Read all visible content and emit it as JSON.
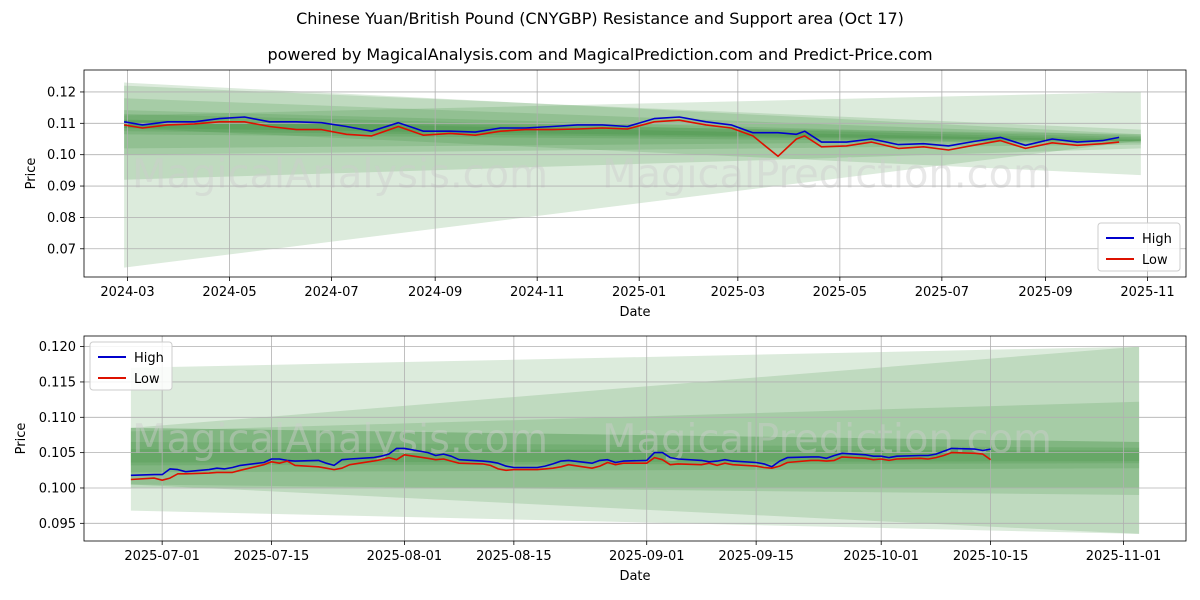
{
  "title": "Chinese Yuan/British Pound (CNYGBP) Resistance and Support area (Oct 17)",
  "subtitle": "powered by MagicalAnalysis.com and MagicalPrediction.com and Predict-Price.com",
  "watermark_left": "MagicalAnalysis.com",
  "watermark_right": "MagicalPrediction.com",
  "colors": {
    "high": "#0000cc",
    "low": "#dd1100",
    "band": "#2e8b2e",
    "grid": "#b0b0b0"
  },
  "chart_data": [
    {
      "type": "line",
      "xlabel": "Date",
      "ylabel": "Price",
      "ylim": [
        0.061,
        0.127
      ],
      "yticks": [
        "0.07",
        "0.08",
        "0.09",
        "0.10",
        "0.11",
        "0.12"
      ],
      "xticks": [
        "2024-03",
        "2024-05",
        "2024-07",
        "2024-09",
        "2024-11",
        "2025-01",
        "2025-03",
        "2025-05",
        "2025-07",
        "2025-09",
        "2025-11"
      ],
      "grid": true,
      "legend_position": "lower-right",
      "series": [
        {
          "name": "High",
          "color": "#0000cc",
          "x": [
            "2024-02-28",
            "2024-03-10",
            "2024-03-25",
            "2024-04-10",
            "2024-04-25",
            "2024-05-10",
            "2024-05-25",
            "2024-06-10",
            "2024-06-25",
            "2024-07-10",
            "2024-07-25",
            "2024-08-10",
            "2024-08-25",
            "2024-09-10",
            "2024-09-25",
            "2024-10-10",
            "2024-10-25",
            "2024-11-10",
            "2024-11-25",
            "2024-12-10",
            "2024-12-25",
            "2025-01-10",
            "2025-01-25",
            "2025-02-10",
            "2025-02-25",
            "2025-03-10",
            "2025-03-25",
            "2025-04-05",
            "2025-04-10",
            "2025-04-20",
            "2025-05-05",
            "2025-05-20",
            "2025-06-05",
            "2025-06-20",
            "2025-07-05",
            "2025-07-20",
            "2025-08-05",
            "2025-08-20",
            "2025-09-05",
            "2025-09-20",
            "2025-10-05",
            "2025-10-15"
          ],
          "values": [
            0.1105,
            0.1095,
            0.1105,
            0.1105,
            0.1115,
            0.112,
            0.1105,
            0.1105,
            0.1102,
            0.109,
            0.1075,
            0.1102,
            0.1075,
            0.1075,
            0.1072,
            0.1085,
            0.1085,
            0.109,
            0.1095,
            0.1095,
            0.109,
            0.1115,
            0.112,
            0.1105,
            0.1095,
            0.107,
            0.107,
            0.1065,
            0.1075,
            0.104,
            0.104,
            0.105,
            0.1032,
            0.1035,
            0.1028,
            0.1042,
            0.1055,
            0.103,
            0.105,
            0.104,
            0.1045,
            0.1055
          ]
        },
        {
          "name": "Low",
          "color": "#dd1100",
          "x": [
            "2024-02-28",
            "2024-03-10",
            "2024-03-25",
            "2024-04-10",
            "2024-04-25",
            "2024-05-10",
            "2024-05-25",
            "2024-06-10",
            "2024-06-25",
            "2024-07-10",
            "2024-07-25",
            "2024-08-10",
            "2024-08-25",
            "2024-09-10",
            "2024-09-25",
            "2024-10-10",
            "2024-10-25",
            "2024-11-10",
            "2024-11-25",
            "2024-12-10",
            "2024-12-25",
            "2025-01-10",
            "2025-01-25",
            "2025-02-10",
            "2025-02-25",
            "2025-03-10",
            "2025-03-25",
            "2025-04-05",
            "2025-04-10",
            "2025-04-20",
            "2025-05-05",
            "2025-05-20",
            "2025-06-05",
            "2025-06-20",
            "2025-07-05",
            "2025-07-20",
            "2025-08-05",
            "2025-08-20",
            "2025-09-05",
            "2025-09-20",
            "2025-10-05",
            "2025-10-15"
          ],
          "values": [
            0.1095,
            0.1085,
            0.1095,
            0.1098,
            0.1105,
            0.1105,
            0.109,
            0.108,
            0.108,
            0.1065,
            0.106,
            0.109,
            0.1062,
            0.1068,
            0.1062,
            0.1075,
            0.108,
            0.108,
            0.1082,
            0.1085,
            0.1082,
            0.1105,
            0.111,
            0.1095,
            0.1085,
            0.106,
            0.0995,
            0.105,
            0.106,
            0.1025,
            0.1028,
            0.104,
            0.102,
            0.1025,
            0.1015,
            0.103,
            0.1045,
            0.102,
            0.1038,
            0.103,
            0.1035,
            0.104
          ]
        }
      ],
      "bands": [
        {
          "x0": "2024-02-28",
          "x1": "2025-10-28",
          "upper0": 0.123,
          "upper1": 0.1065,
          "lower0": 0.064,
          "lower1": 0.1045
        },
        {
          "x0": "2024-02-28",
          "x1": "2025-10-28",
          "upper0": 0.122,
          "upper1": 0.108,
          "lower0": 0.092,
          "lower1": 0.102
        },
        {
          "x0": "2024-02-28",
          "x1": "2025-10-28",
          "upper0": 0.118,
          "upper1": 0.106,
          "lower0": 0.1,
          "lower1": 0.1032
        },
        {
          "x0": "2024-02-28",
          "x1": "2025-10-28",
          "upper0": 0.1142,
          "upper1": 0.1055,
          "lower0": 0.1065,
          "lower1": 0.1038
        },
        {
          "x0": "2024-02-28",
          "x1": "2025-10-28",
          "upper0": 0.113,
          "upper1": 0.105,
          "lower0": 0.1075,
          "lower1": 0.1042
        },
        {
          "x0": "2024-02-28",
          "x1": "2025-10-28",
          "upper0": 0.1112,
          "upper1": 0.1046,
          "lower0": 0.1085,
          "lower1": 0.1043
        },
        {
          "x0": "2024-02-28",
          "x1": "2025-10-28",
          "upper0": 0.111,
          "upper1": 0.1065,
          "lower0": 0.102,
          "lower1": 0.1045
        },
        {
          "x0": "2024-02-28",
          "x1": "2025-10-28",
          "upper0": 0.1125,
          "upper1": 0.12,
          "lower0": 0.1085,
          "lower1": 0.0935
        }
      ]
    },
    {
      "type": "line",
      "xlabel": "Date",
      "ylabel": "Price",
      "ylim": [
        0.0925,
        0.1215
      ],
      "yticks": [
        "0.095",
        "0.100",
        "0.105",
        "0.110",
        "0.115",
        "0.120"
      ],
      "xticks": [
        "2025-07-01",
        "2025-07-15",
        "2025-08-01",
        "2025-08-15",
        "2025-09-01",
        "2025-09-15",
        "2025-10-01",
        "2025-10-15",
        "2025-11-01"
      ],
      "grid": true,
      "legend_position": "upper-left",
      "series": [
        {
          "name": "High",
          "color": "#0000cc",
          "x": [
            "2025-06-27",
            "2025-06-30",
            "2025-07-01",
            "2025-07-02",
            "2025-07-03",
            "2025-07-04",
            "2025-07-07",
            "2025-07-08",
            "2025-07-09",
            "2025-07-10",
            "2025-07-11",
            "2025-07-14",
            "2025-07-15",
            "2025-07-16",
            "2025-07-17",
            "2025-07-18",
            "2025-07-21",
            "2025-07-22",
            "2025-07-23",
            "2025-07-24",
            "2025-07-25",
            "2025-07-28",
            "2025-07-29",
            "2025-07-30",
            "2025-07-31",
            "2025-08-01",
            "2025-08-04",
            "2025-08-05",
            "2025-08-06",
            "2025-08-07",
            "2025-08-08",
            "2025-08-11",
            "2025-08-12",
            "2025-08-13",
            "2025-08-14",
            "2025-08-15",
            "2025-08-18",
            "2025-08-19",
            "2025-08-20",
            "2025-08-21",
            "2025-08-22",
            "2025-08-25",
            "2025-08-26",
            "2025-08-27",
            "2025-08-28",
            "2025-08-29",
            "2025-09-01",
            "2025-09-02",
            "2025-09-03",
            "2025-09-04",
            "2025-09-05",
            "2025-09-08",
            "2025-09-09",
            "2025-09-10",
            "2025-09-11",
            "2025-09-12",
            "2025-09-15",
            "2025-09-16",
            "2025-09-17",
            "2025-09-18",
            "2025-09-19",
            "2025-09-22",
            "2025-09-23",
            "2025-09-24",
            "2025-09-25",
            "2025-09-26",
            "2025-09-29",
            "2025-09-30",
            "2025-10-01",
            "2025-10-02",
            "2025-10-03",
            "2025-10-06",
            "2025-10-07",
            "2025-10-08",
            "2025-10-09",
            "2025-10-10",
            "2025-10-13",
            "2025-10-14",
            "2025-10-15"
          ],
          "values": [
            0.1018,
            0.1019,
            0.1019,
            0.1027,
            0.1026,
            0.1023,
            0.1026,
            0.1028,
            0.1027,
            0.1029,
            0.1032,
            0.1036,
            0.1041,
            0.1041,
            0.1039,
            0.1038,
            0.1039,
            0.1035,
            0.1032,
            0.104,
            0.1041,
            0.1043,
            0.1045,
            0.1048,
            0.1056,
            0.1056,
            0.105,
            0.1046,
            0.1048,
            0.1045,
            0.104,
            0.1038,
            0.1037,
            0.1035,
            0.1031,
            0.1029,
            0.1029,
            0.1031,
            0.1034,
            0.1038,
            0.1039,
            0.1035,
            0.1039,
            0.104,
            0.1036,
            0.1038,
            0.1039,
            0.105,
            0.105,
            0.1043,
            0.1041,
            0.1039,
            0.1037,
            0.1038,
            0.104,
            0.1038,
            0.1036,
            0.1034,
            0.103,
            0.1038,
            0.1043,
            0.1044,
            0.1044,
            0.1042,
            0.1046,
            0.1049,
            0.1047,
            0.1045,
            0.1045,
            0.1043,
            0.1045,
            0.1046,
            0.1046,
            0.1048,
            0.1052,
            0.1056,
            0.1055,
            0.1053,
            0.1055
          ]
        },
        {
          "name": "Low",
          "color": "#dd1100",
          "x": [
            "2025-06-27",
            "2025-06-30",
            "2025-07-01",
            "2025-07-02",
            "2025-07-03",
            "2025-07-04",
            "2025-07-07",
            "2025-07-08",
            "2025-07-09",
            "2025-07-10",
            "2025-07-11",
            "2025-07-14",
            "2025-07-15",
            "2025-07-16",
            "2025-07-17",
            "2025-07-18",
            "2025-07-21",
            "2025-07-22",
            "2025-07-23",
            "2025-07-24",
            "2025-07-25",
            "2025-07-28",
            "2025-07-29",
            "2025-07-30",
            "2025-07-31",
            "2025-08-01",
            "2025-08-04",
            "2025-08-05",
            "2025-08-06",
            "2025-08-07",
            "2025-08-08",
            "2025-08-11",
            "2025-08-12",
            "2025-08-13",
            "2025-08-14",
            "2025-08-15",
            "2025-08-18",
            "2025-08-19",
            "2025-08-20",
            "2025-08-21",
            "2025-08-22",
            "2025-08-25",
            "2025-08-26",
            "2025-08-27",
            "2025-08-28",
            "2025-08-29",
            "2025-09-01",
            "2025-09-02",
            "2025-09-03",
            "2025-09-04",
            "2025-09-05",
            "2025-09-08",
            "2025-09-09",
            "2025-09-10",
            "2025-09-11",
            "2025-09-12",
            "2025-09-15",
            "2025-09-16",
            "2025-09-17",
            "2025-09-18",
            "2025-09-19",
            "2025-09-22",
            "2025-09-23",
            "2025-09-24",
            "2025-09-25",
            "2025-09-26",
            "2025-09-29",
            "2025-09-30",
            "2025-10-01",
            "2025-10-02",
            "2025-10-03",
            "2025-10-06",
            "2025-10-07",
            "2025-10-08",
            "2025-10-09",
            "2025-10-10",
            "2025-10-13",
            "2025-10-14",
            "2025-10-15"
          ],
          "values": [
            0.1012,
            0.1014,
            0.1011,
            0.1014,
            0.102,
            0.102,
            0.1021,
            0.1022,
            0.1022,
            0.1022,
            0.1025,
            0.1033,
            0.1037,
            0.1035,
            0.1038,
            0.1032,
            0.103,
            0.1028,
            0.1026,
            0.1028,
            0.1033,
            0.1038,
            0.104,
            0.1043,
            0.104,
            0.1047,
            0.1042,
            0.104,
            0.1041,
            0.1038,
            0.1035,
            0.1034,
            0.1032,
            0.1027,
            0.1025,
            0.1026,
            0.1026,
            0.1027,
            0.1028,
            0.103,
            0.1033,
            0.1028,
            0.1031,
            0.1036,
            0.1033,
            0.1035,
            0.1035,
            0.1043,
            0.104,
            0.1033,
            0.1034,
            0.1033,
            0.1035,
            0.1032,
            0.1035,
            0.1033,
            0.1031,
            0.1029,
            0.1028,
            0.1031,
            0.1036,
            0.1039,
            0.1039,
            0.1038,
            0.1039,
            0.1044,
            0.1042,
            0.104,
            0.1041,
            0.1039,
            0.1041,
            0.1042,
            0.1041,
            0.1043,
            0.1046,
            0.105,
            0.1049,
            0.1048,
            0.104
          ]
        }
      ],
      "bands": [
        {
          "x0": "2025-06-27",
          "x1": "2025-11-03",
          "upper0": 0.1085,
          "upper1": 0.1065,
          "lower0": 0.0968,
          "lower1": 0.0935
        },
        {
          "x0": "2025-06-27",
          "x1": "2025-11-03",
          "upper0": 0.1085,
          "upper1": 0.12,
          "lower0": 0.1005,
          "lower1": 0.0935
        },
        {
          "x0": "2025-06-27",
          "x1": "2025-11-03",
          "upper0": 0.117,
          "upper1": 0.12,
          "lower0": 0.1,
          "lower1": 0.1
        },
        {
          "x0": "2025-06-27",
          "x1": "2025-11-03",
          "upper0": 0.108,
          "upper1": 0.1122,
          "lower0": 0.1005,
          "lower1": 0.099
        },
        {
          "x0": "2025-06-27",
          "x1": "2025-11-03",
          "upper0": 0.1085,
          "upper1": 0.1065,
          "lower0": 0.1022,
          "lower1": 0.1028
        },
        {
          "x0": "2025-06-27",
          "x1": "2025-11-03",
          "upper0": 0.1065,
          "upper1": 0.1057,
          "lower0": 0.1032,
          "lower1": 0.1035
        },
        {
          "x0": "2025-06-27",
          "x1": "2025-11-03",
          "upper0": 0.1055,
          "upper1": 0.1053,
          "lower0": 0.1036,
          "lower1": 0.1038
        }
      ]
    }
  ]
}
